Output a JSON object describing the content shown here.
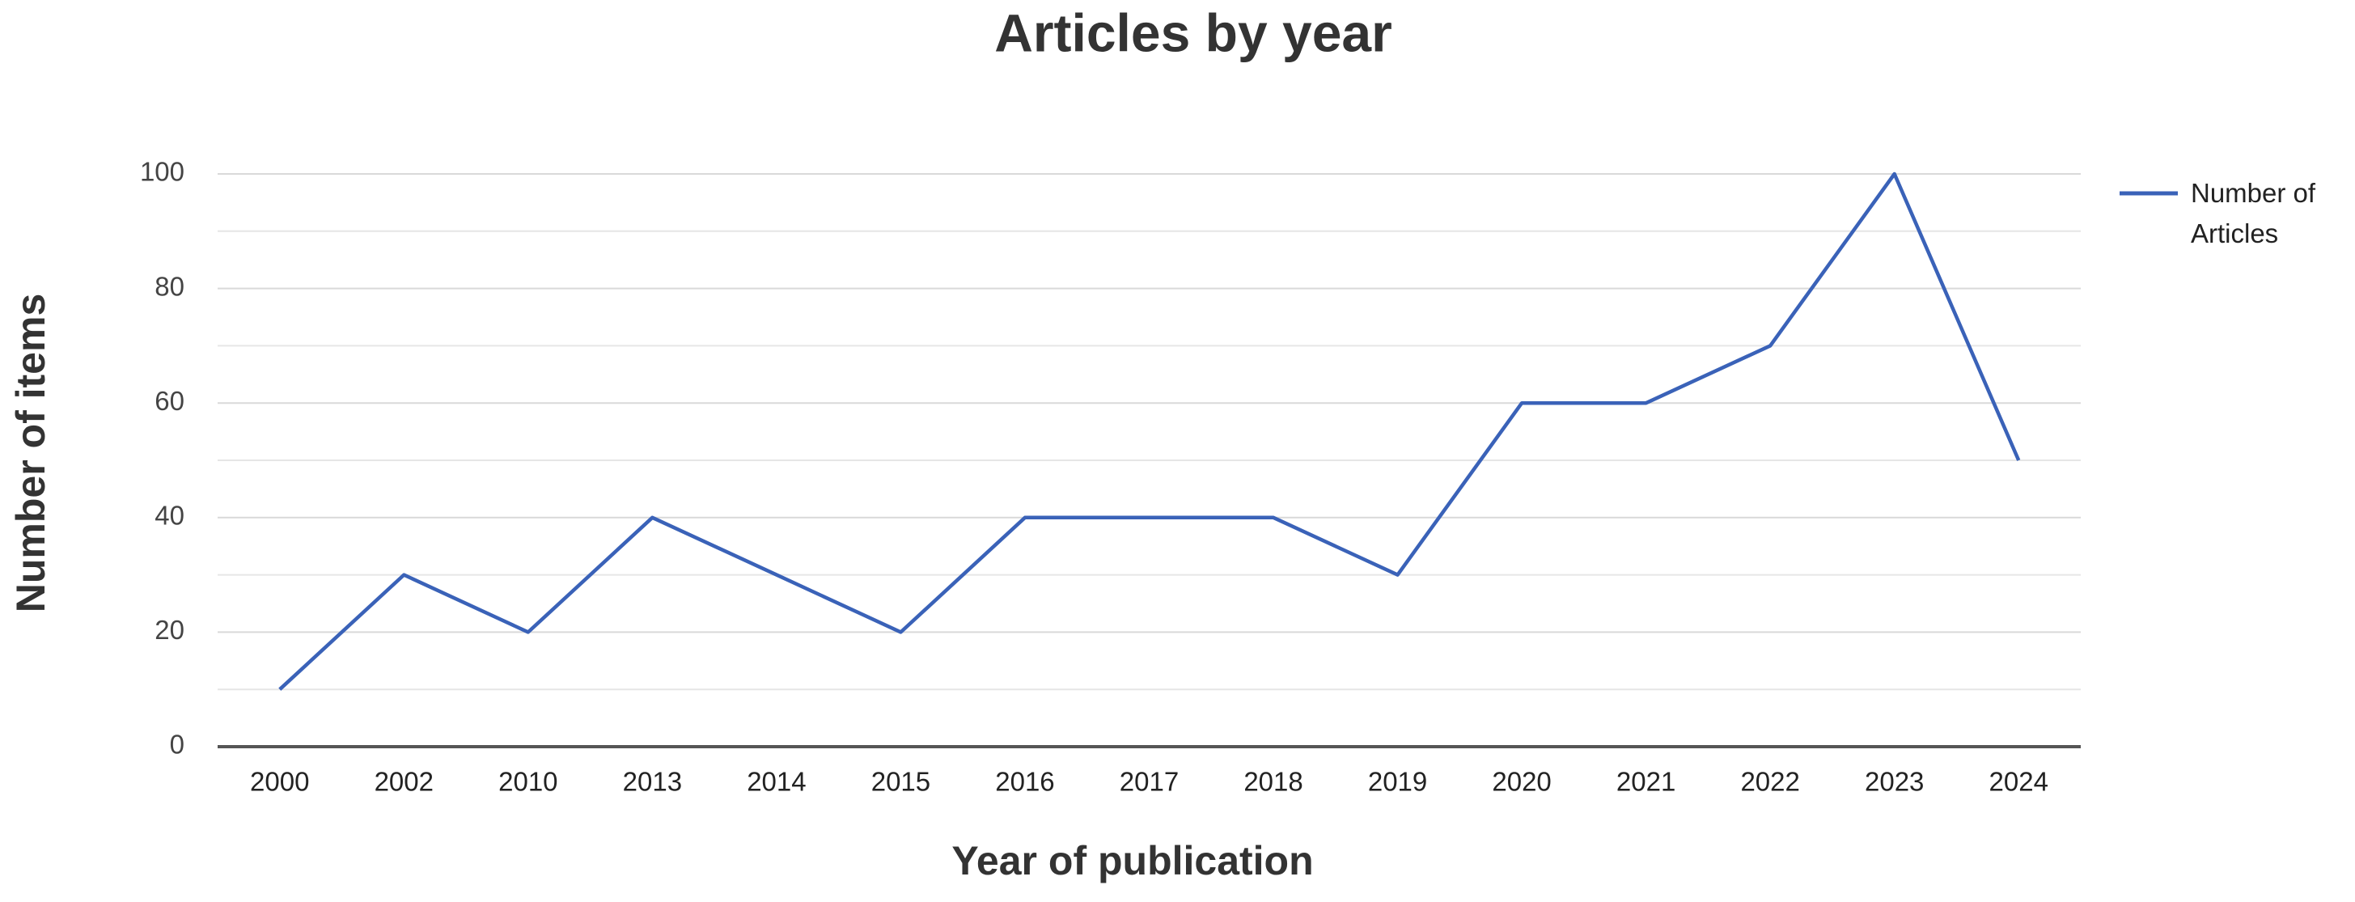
{
  "chart_data": {
    "type": "line",
    "title": "Articles by year",
    "x_label": "Year of publication",
    "y_label": "Number of items",
    "categories": [
      "2000",
      "2002",
      "2010",
      "2013",
      "2014",
      "2015",
      "2016",
      "2017",
      "2018",
      "2019",
      "2020",
      "2021",
      "2022",
      "2023",
      "2024"
    ],
    "series": [
      {
        "name": "Number of Articles",
        "color": "#3a62b8",
        "values": [
          10,
          30,
          20,
          40,
          30,
          20,
          40,
          40,
          40,
          30,
          60,
          60,
          70,
          100,
          50
        ]
      }
    ],
    "ylim": [
      0,
      100
    ],
    "yticks": [
      0,
      20,
      40,
      60,
      80,
      100
    ],
    "minor_yticks": [
      10,
      30,
      50,
      70,
      90
    ],
    "grid": true,
    "legend": "right"
  }
}
